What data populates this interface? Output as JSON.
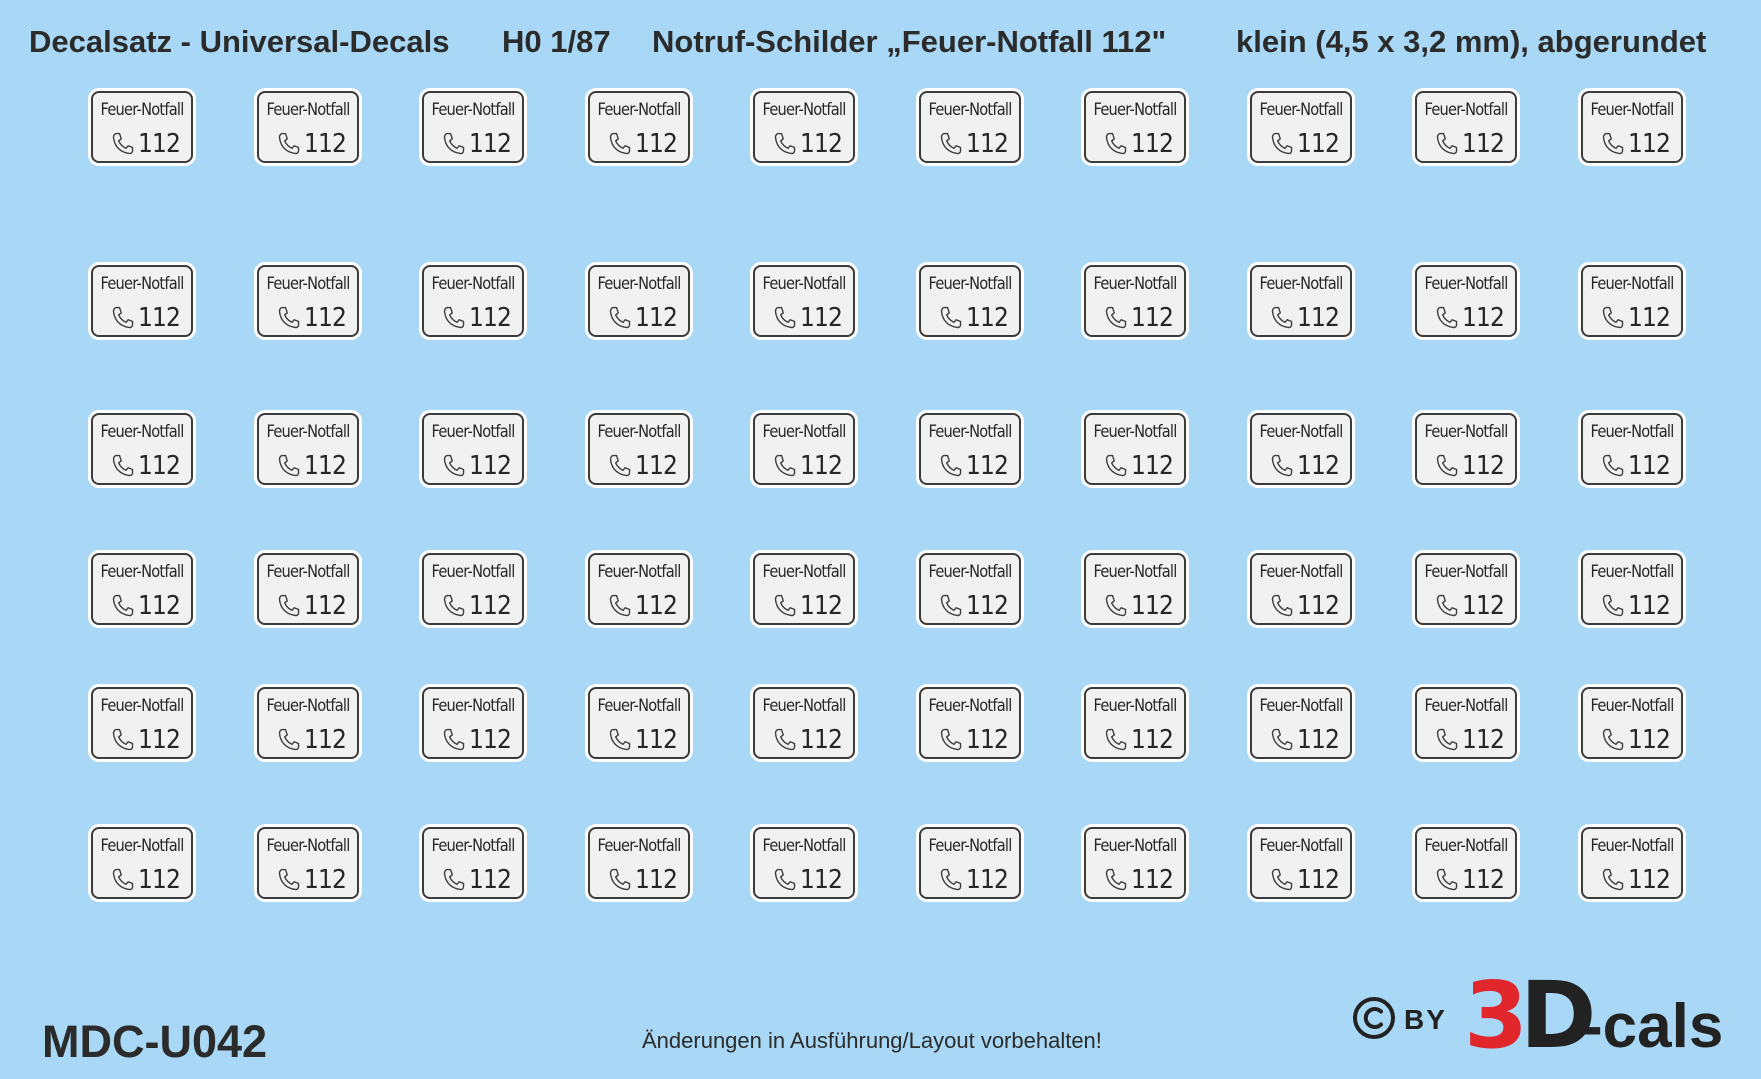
{
  "header": {
    "part1": "Decalsatz - Universal-Decals",
    "part2": "H0 1/87",
    "part3": "Notruf-Schilder „Feuer-Notfall 112\"",
    "part4": "klein (4,5 x 3,2 mm), abgerundet"
  },
  "sign": {
    "title": "Feuer-Notfall",
    "number": "112",
    "icon": "telephone-handset-icon"
  },
  "sheet": {
    "rows": 6,
    "columns": 10
  },
  "footer": {
    "code": "MDC-U042",
    "note": "Änderungen in Ausführung/Layout vorbehalten!"
  },
  "brand": {
    "copyright_icon": "copyright-icon",
    "by": "BY",
    "three": "3",
    "d": "D",
    "rest": "-cals"
  },
  "colors": {
    "background": "#a8d8f5",
    "text": "#2b2b2b",
    "brand_red": "#e1262c",
    "sign_face": "#f1f1f1",
    "sign_border": "#3b3b3b"
  }
}
